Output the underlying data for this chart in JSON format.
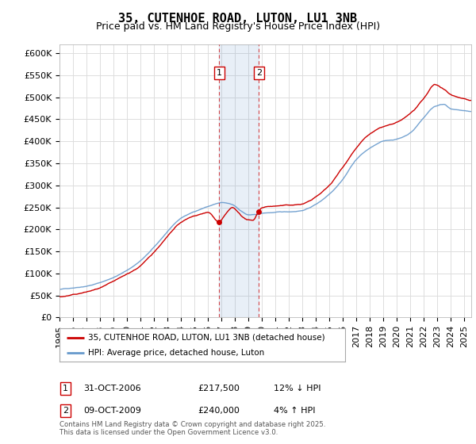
{
  "title": "35, CUTENHOE ROAD, LUTON, LU1 3NB",
  "subtitle": "Price paid vs. HM Land Registry's House Price Index (HPI)",
  "ylim": [
    0,
    620000
  ],
  "yticks": [
    0,
    50000,
    100000,
    150000,
    200000,
    250000,
    300000,
    350000,
    400000,
    450000,
    500000,
    550000,
    600000
  ],
  "ytick_labels": [
    "£0",
    "£50K",
    "£100K",
    "£150K",
    "£200K",
    "£250K",
    "£300K",
    "£350K",
    "£400K",
    "£450K",
    "£500K",
    "£550K",
    "£600K"
  ],
  "hpi_color": "#6699cc",
  "price_color": "#cc0000",
  "point1_date_x": 2006.83,
  "point2_date_x": 2009.77,
  "point1_price": 217500,
  "point2_price": 240000,
  "legend_property": "35, CUTENHOE ROAD, LUTON, LU1 3NB (detached house)",
  "legend_hpi": "HPI: Average price, detached house, Luton",
  "annotation1_date": "31-OCT-2006",
  "annotation1_price": "£217,500",
  "annotation1_hpi": "12% ↓ HPI",
  "annotation2_date": "09-OCT-2009",
  "annotation2_price": "£240,000",
  "annotation2_hpi": "4% ↑ HPI",
  "copyright": "Contains HM Land Registry data © Crown copyright and database right 2025.\nThis data is licensed under the Open Government Licence v3.0.",
  "background_color": "#ffffff",
  "grid_color": "#dddddd",
  "title_fontsize": 11,
  "subtitle_fontsize": 9,
  "tick_fontsize": 8,
  "xmin": 1995,
  "xmax": 2025.5
}
